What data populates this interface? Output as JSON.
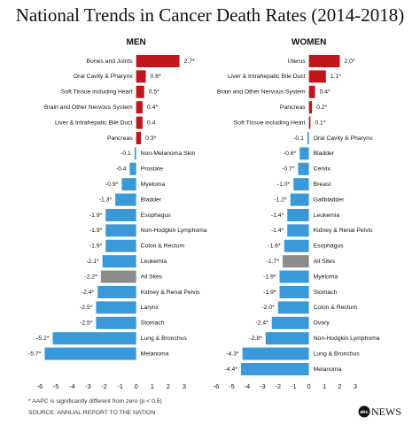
{
  "title": "National Trends in Cancer Death Rates (2014-2018)",
  "footnote": "* AAPC is significantly different from zero (p < 0.5)",
  "source": "SOURCE: ANNUAL REPORT TO THE NATION",
  "logo": {
    "abc": "abc",
    "news": "NEWS"
  },
  "chart_data": [
    {
      "type": "bar",
      "orientation": "horizontal",
      "title": "MEN",
      "categories": [
        "Bones and Joints",
        "Oral Cavity & Pharynx",
        "Soft Tissue including Heart",
        "Brain and Other Nervous System",
        "Liver & Intrahepatic Bile Duct",
        "Pancreas",
        "Non-Melanoma Skin",
        "Prostate",
        "Myeloma",
        "Bladder",
        "Esophagus",
        "Non-Hodgkin Lymphoma",
        "Colon & Rectum",
        "Leukemia",
        "All Sites",
        "Kidney & Renal Pelvis",
        "Larynx",
        "Stomach",
        "Lung & Bronchus",
        "Melanoma"
      ],
      "values": [
        2.7,
        0.6,
        0.5,
        0.4,
        0.4,
        0.3,
        -0.1,
        -0.4,
        -0.9,
        -1.3,
        -1.9,
        -1.9,
        -1.9,
        -2.1,
        -2.2,
        -2.4,
        -2.5,
        -2.5,
        -5.2,
        -5.7
      ],
      "value_labels": [
        "2.7*",
        "0.6*",
        "0.5*",
        "0.4*",
        "0.4",
        "0.3*",
        "-0.1",
        "-0.4",
        "-0.9*",
        "-1.3*",
        "-1.9*",
        "-1.9*",
        "-1.9*",
        "-2.1*",
        "-2.2*",
        "-2.4*",
        "-2.5*",
        "-2.5*",
        "-5.2*",
        "-5.7*"
      ],
      "colors": [
        "#c0161c",
        "#c0161c",
        "#c0161c",
        "#c0161c",
        "#c0161c",
        "#c0161c",
        "#3a9ad9",
        "#3a9ad9",
        "#3a9ad9",
        "#3a9ad9",
        "#3a9ad9",
        "#3a9ad9",
        "#3a9ad9",
        "#3a9ad9",
        "#8c8c8c",
        "#3a9ad9",
        "#3a9ad9",
        "#3a9ad9",
        "#3a9ad9",
        "#3a9ad9"
      ],
      "xlim": [
        -6.7,
        3.8
      ],
      "xticks": [
        -6,
        -5,
        -4,
        -3,
        -2,
        -1,
        0,
        1,
        2,
        3
      ]
    },
    {
      "type": "bar",
      "orientation": "horizontal",
      "title": "WOMEN",
      "categories": [
        "Uterus",
        "Liver & Intrahepatic Bile Duct",
        "Brain and Other Nervous System",
        "Pancreas",
        "Soft Tissue including Heart",
        "Oral Cavity & Pharynx",
        "Bladder",
        "Cervix",
        "Breast",
        "Gallbladder",
        "Leukemia",
        "Kidney & Renal Pelvis",
        "Esophagus",
        "All Sites",
        "Myeloma",
        "Stomach",
        "Colon & Rectum",
        "Ovary",
        "Non-Hodgkin Lymphoma",
        "Lung & Bronchus",
        "Melanoma"
      ],
      "values": [
        2.0,
        1.1,
        0.4,
        0.2,
        0.1,
        -0.1,
        -0.6,
        -0.7,
        -1.0,
        -1.2,
        -1.4,
        -1.4,
        -1.6,
        -1.7,
        -1.9,
        -1.9,
        -2.0,
        -2.4,
        -2.8,
        -4.3,
        -4.4
      ],
      "value_labels": [
        "2.0*",
        "1.1*",
        "0.4*",
        "0.2*",
        "0.1*",
        "-0.1",
        "-0.6*",
        "-0.7*",
        "-1.0*",
        "-1.2*",
        "-1.4*",
        "-1.4*",
        "-1.6*",
        "-1.7*",
        "-1.9*",
        "-1.9*",
        "-2.0*",
        "-2.4*",
        "-2.8*",
        "-4.3*",
        "-4.4*"
      ],
      "colors": [
        "#c0161c",
        "#c0161c",
        "#c0161c",
        "#c0161c",
        "#c0161c",
        "#3a9ad9",
        "#3a9ad9",
        "#3a9ad9",
        "#3a9ad9",
        "#3a9ad9",
        "#3a9ad9",
        "#3a9ad9",
        "#3a9ad9",
        "#8c8c8c",
        "#3a9ad9",
        "#3a9ad9",
        "#3a9ad9",
        "#3a9ad9",
        "#3a9ad9",
        "#3a9ad9",
        "#3a9ad9"
      ],
      "xlim": [
        -6.7,
        3.8
      ],
      "xticks": [
        -6,
        -5,
        -4,
        -3,
        -2,
        -1,
        0,
        1,
        2,
        3
      ]
    }
  ]
}
